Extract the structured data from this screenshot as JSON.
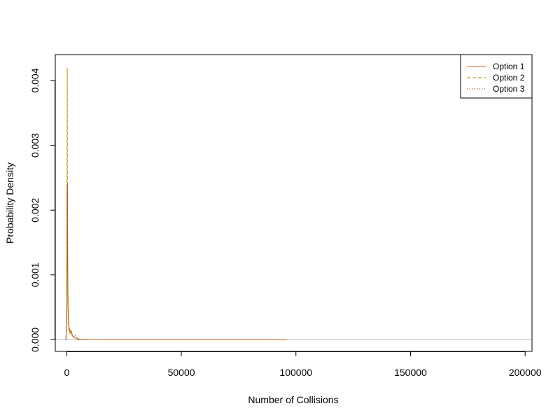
{
  "chart_data": {
    "type": "line",
    "title": "",
    "xlabel": "Number of Collisions",
    "ylabel": "Probability Density",
    "xlim": [
      -5000,
      203000
    ],
    "ylim": [
      -0.00018,
      0.0044
    ],
    "x_ticks": [
      0,
      50000,
      100000,
      150000,
      200000
    ],
    "x_tick_labels": [
      "0",
      "50000",
      "100000",
      "150000",
      "200000"
    ],
    "y_ticks": [
      0.0,
      0.001,
      0.002,
      0.003,
      0.004
    ],
    "y_tick_labels": [
      "0.000",
      "0.001",
      "0.002",
      "0.003",
      "0.004"
    ],
    "grid": false,
    "legend_position": "top-right",
    "zero_line": true,
    "colors": {
      "zero_line": "#bebebe"
    },
    "series": [
      {
        "name": "Option 1",
        "style": "solid",
        "color": "#d2691e",
        "points": [
          [
            -400,
            0
          ],
          [
            0,
            0.0003
          ],
          [
            80,
            0.0006
          ],
          [
            150,
            0.0015
          ],
          [
            220,
            0.0022
          ],
          [
            280,
            0.0024
          ],
          [
            340,
            0.0021
          ],
          [
            420,
            0.0013
          ],
          [
            520,
            0.0007
          ],
          [
            700,
            0.00035
          ],
          [
            1000,
            0.0002
          ],
          [
            1500,
            0.00012
          ],
          [
            2000,
            8e-05
          ],
          [
            3000,
            4e-05
          ],
          [
            4000,
            2e-05
          ],
          [
            6000,
            8e-06
          ],
          [
            10000,
            4e-06
          ],
          [
            20000,
            2e-06
          ],
          [
            50000,
            1e-06
          ],
          [
            96000,
            5e-07
          ]
        ]
      },
      {
        "name": "Option 2",
        "style": "dashed",
        "color": "#cd8500",
        "points": [
          [
            -300,
            0
          ],
          [
            0,
            0.0005
          ],
          [
            80,
            0.0015
          ],
          [
            140,
            0.0032
          ],
          [
            200,
            0.0042
          ],
          [
            250,
            0.0038
          ],
          [
            310,
            0.0025
          ],
          [
            380,
            0.0013
          ],
          [
            480,
            0.0006
          ],
          [
            650,
            0.0003
          ],
          [
            900,
            0.00015
          ],
          [
            1200,
            0.0001
          ],
          [
            1500,
            0.00013
          ],
          [
            1800,
            0.00016
          ],
          [
            2200,
            0.0001
          ],
          [
            2700,
            6e-05
          ],
          [
            3200,
            4e-05
          ],
          [
            3800,
            2e-05
          ],
          [
            4500,
            1e-05
          ],
          [
            5500,
            0.0
          ]
        ]
      },
      {
        "name": "Option 3",
        "style": "dotted",
        "color": "#8b4513",
        "points": [
          [
            -300,
            0
          ],
          [
            0,
            0.0004
          ],
          [
            100,
            0.0012
          ],
          [
            180,
            0.0022
          ],
          [
            240,
            0.0024
          ],
          [
            300,
            0.0018
          ],
          [
            380,
            0.001
          ],
          [
            500,
            0.0005
          ],
          [
            700,
            0.0003
          ],
          [
            1000,
            0.00018
          ],
          [
            1400,
            0.00012
          ],
          [
            1800,
            0.00014
          ],
          [
            2200,
            0.00012
          ],
          [
            2600,
            8e-05
          ],
          [
            3000,
            5e-05
          ],
          [
            3500,
            7e-05
          ],
          [
            4000,
            5e-05
          ],
          [
            4500,
            3e-05
          ],
          [
            5000,
            1e-05
          ],
          [
            5500,
            0.0
          ]
        ]
      }
    ]
  }
}
